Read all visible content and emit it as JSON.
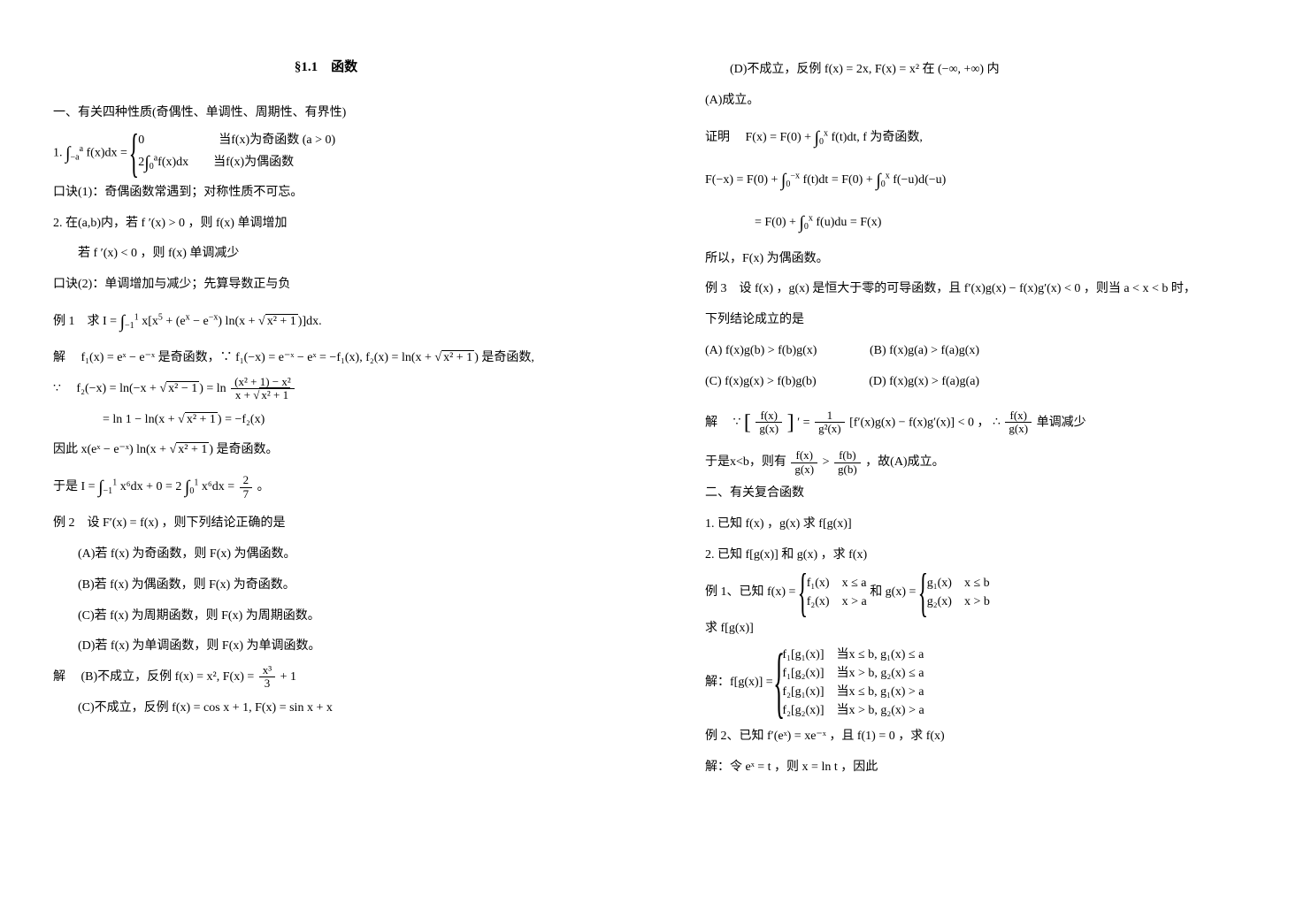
{
  "section_title": "§1.1　函数",
  "left": {
    "l1": "一、有关四种性质(奇偶性、单调性、周期性、有界性)",
    "num1_prefix": "1.",
    "num1_lhs": "∫",
    "num1_lhs_bounds_lo": "−a",
    "num1_lhs_bounds_hi": "a",
    "num1_body": "f(x)dx =",
    "num1_case1": "0",
    "num1_case1_cond": "当f(x)为奇函数 (a > 0)",
    "num1_case2_pre": "2",
    "num1_case2_int_lo": "0",
    "num1_case2_int_hi": "a",
    "num1_case2_body": "f(x)dx",
    "num1_case2_cond": "当f(x)为偶函数",
    "kj1": "口诀(1)：奇偶函数常遇到；对称性质不可忘。",
    "num2": "2. 在(a,b)内，若 f ′(x) > 0 ，则 f(x) 单调增加",
    "num2_b": "若 f ′(x) < 0 ，则 f(x) 单调减少",
    "kj2": "口诀(2)：单调增加与减少；先算导数正与负",
    "ex1_label": "例 1　求 I =",
    "ex1_int_lo": "−1",
    "ex1_int_hi": "1",
    "ex1_body1": "x[x",
    "ex1_body1_sup": "5",
    "ex1_body2": " + (e",
    "ex1_body2_sup": "x",
    "ex1_body3": " − e",
    "ex1_body3_sup": "−x",
    "ex1_body4": ") ln(x + ",
    "ex1_sqrt": "x² + 1",
    "ex1_body5": ")]dx.",
    "sol_prefix": "解",
    "sol_l1a": "f₁(x) = eˣ − e⁻ˣ 是奇函数，∵ f₁(−x) = e⁻ˣ − eˣ = −f₁(x), f₂(x) = ln(x + ",
    "sol_l1_sqrt": "x² + 1",
    "sol_l1b": ") 是奇函数,",
    "since": "∵",
    "sol_l2a": "f₂(−x) = ln(−x + ",
    "sol_l2_sqrt": "x² − 1",
    "sol_l2b": ") = ln",
    "sol_l2_num": "(x² + 1) − x²",
    "sol_l2_den_pre": "x + ",
    "sol_l2_den_sqrt": "x² + 1",
    "sol_l3a": "= ln 1 − ln(x + ",
    "sol_l3_sqrt": "x² + 1",
    "sol_l3b": ") = −f₂(x)",
    "sol_l4a": "因此 x(eˣ − e⁻ˣ) ln(x + ",
    "sol_l4_sqrt": "x² + 1",
    "sol_l4b": ") 是奇函数。",
    "sol_l5a": "于是 I =",
    "sol_l5_int1_lo": "−1",
    "sol_l5_int1_hi": "1",
    "sol_l5_b": "x⁶dx + 0 = 2",
    "sol_l5_int2_lo": "0",
    "sol_l5_int2_hi": "1",
    "sol_l5_c": "x⁶dx =",
    "sol_l5_num": "2",
    "sol_l5_den": "7",
    "sol_l5_d": "。",
    "ex2_label": "例 2　设 F′(x) = f(x) ，则下列结论正确的是",
    "ex2_A": "(A)若 f(x) 为奇函数，则 F(x) 为偶函数。",
    "ex2_B": "(B)若 f(x) 为偶函数，则 F(x) 为奇函数。",
    "ex2_C": "(C)若 f(x) 为周期函数，则 F(x) 为周期函数。",
    "ex2_D": "(D)若 f(x) 为单调函数，则 F(x) 为单调函数。",
    "sol2_b_a": "(B)不成立，反例 f(x) = x², F(x) =",
    "sol2_b_num": "x³",
    "sol2_b_den": "3",
    "sol2_b_b": "+ 1",
    "sol2_c": "(C)不成立，反例 f(x) = cos x + 1, F(x) = sin x + x"
  },
  "right": {
    "top_d": "(D)不成立，反例 f(x) = 2x, F(x) = x² 在 (−∞, +∞) 内",
    "A_holds": "(A)成立。",
    "proof_label": "证明",
    "proof_l1a": "F(x) = F(0) +",
    "proof_l1_lo": "0",
    "proof_l1_hi": "x",
    "proof_l1b": "f(t)dt, f 为奇函数,",
    "proof_l2a": "F(−x) = F(0) +",
    "proof_l2_lo1": "0",
    "proof_l2_hi1": "−x",
    "proof_l2b": "f(t)dt = F(0) +",
    "proof_l2_lo2": "0",
    "proof_l2_hi2": "x",
    "proof_l2c": "f(−u)d(−u)",
    "proof_l3a": "= F(0) +",
    "proof_l3_lo": "0",
    "proof_l3_hi": "x",
    "proof_l3b": "f(u)du = F(x)",
    "proof_conc": "所以，F(x) 为偶函数。",
    "ex3_label": "例 3　设 f(x) ，g(x) 是恒大于零的可导函数，且 f′(x)g(x) − f(x)g′(x) < 0 ，则当 a < x < b 时，",
    "ex3_sub": "下列结论成立的是",
    "ex3_A": "(A) f(x)g(b) > f(b)g(x)",
    "ex3_B": "(B) f(x)g(a) > f(a)g(x)",
    "ex3_C": "(C) f(x)g(x) > f(b)g(b)",
    "ex3_D": "(D) f(x)g(x) > f(a)g(a)",
    "sol3_since": "∵",
    "sol3_br_num": "f(x)",
    "sol3_br_den": "g(x)",
    "sol3_mid1": "′ =",
    "sol3_frac2_num": "1",
    "sol3_frac2_den": "g²(x)",
    "sol3_mid2": "[f′(x)g(x) − f(x)g′(x)] < 0 ，",
    "sol3_there": "∴",
    "sol3_frac3_num": "f(x)",
    "sol3_frac3_den": "g(x)",
    "sol3_tail": "单调减少",
    "sol3_l2a": "于是x<b，则有",
    "sol3_l2_f1n": "f(x)",
    "sol3_l2_f1d": "g(x)",
    "sol3_l2_gt": ">",
    "sol3_l2_f2n": "f(b)",
    "sol3_l2_f2d": "g(b)",
    "sol3_l2b": "，故(A)成立。",
    "sec2": "二、有关复合函数",
    "sec2_1": "1. 已知 f(x) ，g(x) 求 f[g(x)]",
    "sec2_2": "2. 已知 f[g(x)] 和 g(x) ，求 f(x)",
    "r_ex1_label": "例 1、已知 f(x) =",
    "r_ex1_c1": "f₁(x)　x ≤ a",
    "r_ex1_c2": "f₂(x)　x > a",
    "r_ex1_mid": "和 g(x) =",
    "r_ex1_d1": "g₁(x)　x ≤ b",
    "r_ex1_d2": "g₂(x)　x > b",
    "r_find": "求 f[g(x)]",
    "r_sol_label": "解：f[g(x)] =",
    "r_sol_c1": "f₁[g₁(x)]　当x ≤ b,  g₁(x) ≤ a",
    "r_sol_c2": "f₁[g₂(x)]　当x > b,  g₂(x) ≤ a",
    "r_sol_c3": "f₂[g₁(x)]　当x ≤ b,  g₁(x) > a",
    "r_sol_c4": "f₂[g₂(x)]　当x > b,  g₂(x) > a",
    "r_ex2": "例 2、已知 f′(eˣ) = xe⁻ˣ ，且 f(1) = 0 ，求 f(x)",
    "r_ex2_sol": "解：令 eˣ = t ，则 x = ln t ，因此"
  },
  "style": {
    "page_bg": "#ffffff",
    "text_color": "#000000",
    "font_size_body": 14,
    "font_size_title": 15,
    "font_family": "SimSun",
    "line_height": 2.2
  }
}
